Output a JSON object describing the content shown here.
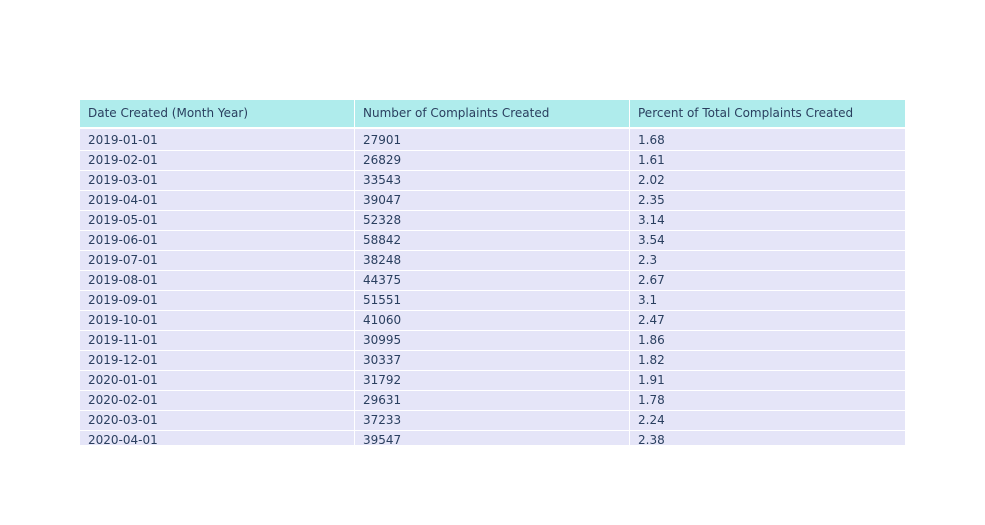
{
  "chart_data": {
    "type": "table",
    "columns": [
      "Date Created (Month Year)",
      "Number of Complaints Created",
      "Percent of Total Complaints Created"
    ],
    "rows": [
      [
        "2019-01-01",
        "27901",
        "1.68"
      ],
      [
        "2019-02-01",
        "26829",
        "1.61"
      ],
      [
        "2019-03-01",
        "33543",
        "2.02"
      ],
      [
        "2019-04-01",
        "39047",
        "2.35"
      ],
      [
        "2019-05-01",
        "52328",
        "3.14"
      ],
      [
        "2019-06-01",
        "58842",
        "3.54"
      ],
      [
        "2019-07-01",
        "38248",
        "2.3"
      ],
      [
        "2019-08-01",
        "44375",
        "2.67"
      ],
      [
        "2019-09-01",
        "51551",
        "3.1"
      ],
      [
        "2019-10-01",
        "41060",
        "2.47"
      ],
      [
        "2019-11-01",
        "30995",
        "1.86"
      ],
      [
        "2019-12-01",
        "30337",
        "1.82"
      ],
      [
        "2020-01-01",
        "31792",
        "1.91"
      ],
      [
        "2020-02-01",
        "29631",
        "1.78"
      ],
      [
        "2020-03-01",
        "37233",
        "2.24"
      ],
      [
        "2020-04-01",
        "39547",
        "2.38"
      ]
    ],
    "header_color": "#afecec",
    "cell_color": "#e5e5f8",
    "text_color": "#2a3f5f"
  }
}
